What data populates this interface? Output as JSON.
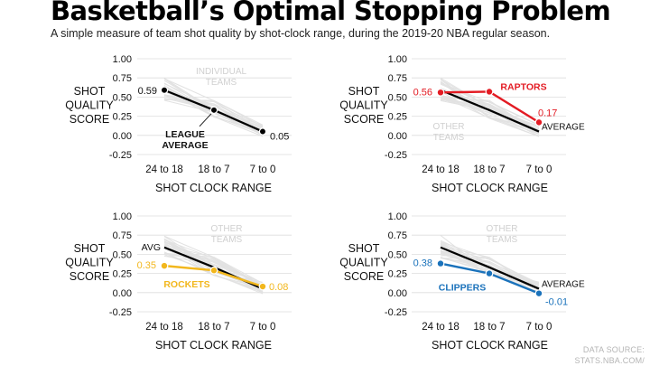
{
  "header": {
    "title": "Basketball’s Optimal Stopping Problem",
    "subtitle": "A simple measure of team shot quality by shot-clock range, during the 2019-20 NBA regular season."
  },
  "source": {
    "line1": "DATA SOURCE:",
    "line2": "STATS.NBA.COM/"
  },
  "colors": {
    "league": "#000000",
    "background_teams": "#e2e2e2",
    "grid": "#dddddd",
    "raptors": "#e31b23",
    "rockets": "#f2b71d",
    "clippers": "#1a72bb"
  },
  "chart_data": [
    {
      "type": "line",
      "ylabel": [
        "SHOT",
        "QUALITY",
        "SCORE"
      ],
      "xlabel": "SHOT CLOCK RANGE",
      "categories": [
        "24 to 18",
        "18 to 7",
        "7 to 0"
      ],
      "yticks": [
        "1.00",
        "0.75",
        "0.50",
        "0.25",
        "0.00",
        "-0.25"
      ],
      "ylim": [
        -0.25,
        1.0
      ],
      "background_label": [
        "INDIVIDUAL",
        "TEAMS"
      ],
      "league": {
        "values": [
          0.59,
          0.33,
          0.05
        ],
        "label": [
          "LEAGUE",
          "AVERAGE"
        ],
        "value_labels": [
          "0.59",
          "",
          "0.05"
        ]
      },
      "highlight": null
    },
    {
      "type": "line",
      "ylabel": [
        "SHOT",
        "QUALITY",
        "SCORE"
      ],
      "xlabel": "SHOT CLOCK RANGE",
      "categories": [
        "24 to 18",
        "18 to 7",
        "7 to 0"
      ],
      "yticks": [
        "1.00",
        "0.75",
        "0.50",
        "0.25",
        "0.00",
        "-0.25"
      ],
      "ylim": [
        -0.25,
        1.0
      ],
      "background_label": [
        "OTHER",
        "TEAMS"
      ],
      "league": {
        "values": [
          0.59,
          0.33,
          0.05
        ],
        "label": [
          "AVERAGE"
        ]
      },
      "highlight": {
        "name": "RAPTORS",
        "color": "#e31b23",
        "values": [
          0.56,
          0.57,
          0.17
        ],
        "value_labels": [
          "0.56",
          "",
          "0.17"
        ]
      }
    },
    {
      "type": "line",
      "ylabel": [
        "SHOT",
        "QUALITY",
        "SCORE"
      ],
      "xlabel": "SHOT CLOCK RANGE",
      "categories": [
        "24 to 18",
        "18 to 7",
        "7 to 0"
      ],
      "yticks": [
        "1.00",
        "0.75",
        "0.50",
        "0.25",
        "0.00",
        "-0.25"
      ],
      "ylim": [
        -0.25,
        1.0
      ],
      "background_label": [
        "OTHER",
        "TEAMS"
      ],
      "league": {
        "values": [
          0.59,
          0.33,
          0.05
        ],
        "label": [
          "AVG"
        ]
      },
      "highlight": {
        "name": "ROCKETS",
        "color": "#f2b71d",
        "values": [
          0.35,
          0.29,
          0.08
        ],
        "value_labels": [
          "0.35",
          "",
          "0.08"
        ]
      }
    },
    {
      "type": "line",
      "ylabel": [
        "SHOT",
        "QUALITY",
        "SCORE"
      ],
      "xlabel": "SHOT CLOCK RANGE",
      "categories": [
        "24 to 18",
        "18 to 7",
        "7 to 0"
      ],
      "yticks": [
        "1.00",
        "0.75",
        "0.50",
        "0.25",
        "0.00",
        "-0.25"
      ],
      "ylim": [
        -0.25,
        1.0
      ],
      "background_label": [
        "OTHER",
        "TEAMS"
      ],
      "league": {
        "values": [
          0.59,
          0.33,
          0.05
        ],
        "label": [
          "AVERAGE"
        ]
      },
      "highlight": {
        "name": "CLIPPERS",
        "color": "#1a72bb",
        "values": [
          0.38,
          0.25,
          -0.01
        ],
        "value_labels": [
          "0.38",
          "",
          "-0.01"
        ]
      }
    }
  ]
}
